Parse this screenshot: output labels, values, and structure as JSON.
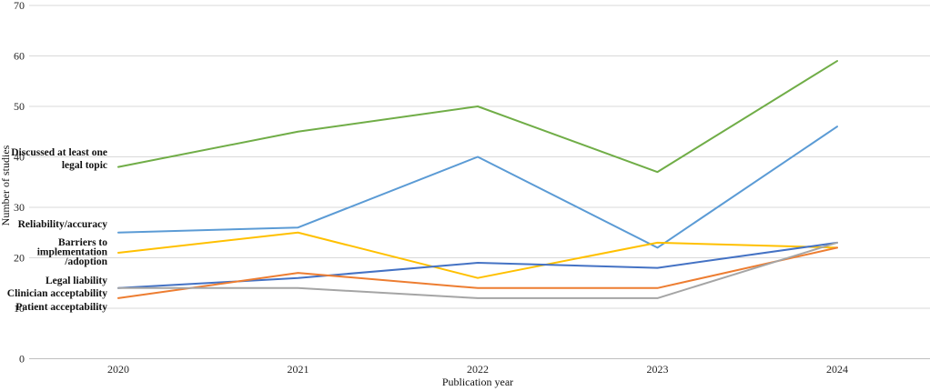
{
  "chart_data": {
    "type": "line",
    "xlabel": "Publication year",
    "ylabel": "Number of studies",
    "x": [
      2020,
      2021,
      2022,
      2023,
      2024
    ],
    "yticks": [
      0,
      10,
      20,
      30,
      40,
      50,
      60,
      70
    ],
    "ylim": [
      0,
      70
    ],
    "ytick_step": 10,
    "grid": true,
    "legend_position": "inline-left-of-lines",
    "gridline_color": "#D9D9D9",
    "axis_line_color": "#BFBFBF",
    "series": [
      {
        "name": "Discussed at least one legal topic",
        "label_lines": [
          "Discussed at least one",
          "legal topic"
        ],
        "color": "#70AD47",
        "values": [
          38,
          45,
          50,
          37,
          59
        ]
      },
      {
        "name": "Reliability/accuracy",
        "label_lines": [
          "Reliability/accuracy"
        ],
        "color": "#5B9BD5",
        "values": [
          25,
          26,
          40,
          22,
          46
        ]
      },
      {
        "name": "Barriers to implementation/adoption",
        "label_lines": [
          "Barriers to",
          "implementation",
          "/adoption"
        ],
        "color": "#FFC000",
        "values": [
          21,
          25,
          16,
          23,
          22
        ]
      },
      {
        "name": "Legal liability",
        "label_lines": [
          "Legal liability"
        ],
        "color": "#4472C4",
        "values": [
          14,
          16,
          19,
          18,
          23
        ]
      },
      {
        "name": "Clinician acceptability",
        "label_lines": [
          "Clinician acceptability"
        ],
        "color": "#ED7D31",
        "values": [
          12,
          17,
          14,
          14,
          22
        ]
      },
      {
        "name": "Patient acceptability",
        "label_lines": [
          "Patient acceptability"
        ],
        "color": "#A5A5A5",
        "values": [
          14,
          14,
          12,
          12,
          23
        ]
      }
    ]
  }
}
